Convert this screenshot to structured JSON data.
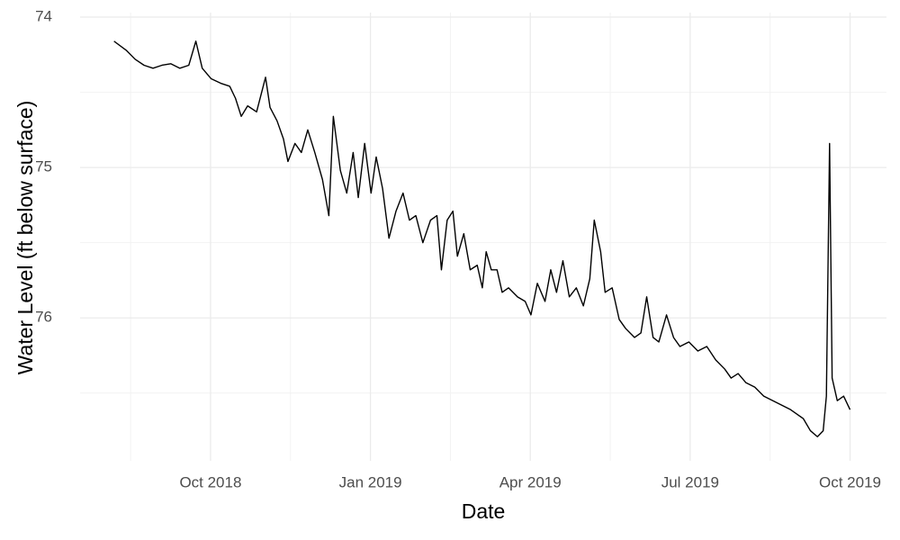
{
  "chart_data": {
    "type": "line",
    "x_label": "Date",
    "y_label": "Water Level (ft below surface)",
    "color": "#000000",
    "grid": true,
    "y_reversed": true,
    "xlim": [
      2018.546,
      2019.807
    ],
    "ylim": [
      73.97,
      76.95
    ],
    "xticks": [
      {
        "value": 2018.75,
        "label": "Oct 2018"
      },
      {
        "value": 2019.0,
        "label": "Jan 2019"
      },
      {
        "value": 2019.25,
        "label": "Apr 2019"
      },
      {
        "value": 2019.5,
        "label": "Jul 2019"
      },
      {
        "value": 2019.75,
        "label": "Oct 2019"
      }
    ],
    "yticks": [
      74,
      75,
      76
    ],
    "x": [
      2018.599,
      2018.618,
      2018.632,
      2018.646,
      2018.66,
      2018.674,
      2018.688,
      2018.702,
      2018.716,
      2018.727,
      2018.737,
      2018.751,
      2018.766,
      2018.78,
      2018.789,
      2018.798,
      2018.808,
      2018.822,
      2018.836,
      2018.843,
      2018.854,
      2018.864,
      2018.871,
      2018.882,
      2018.892,
      2018.902,
      2018.913,
      2018.925,
      2018.935,
      2018.942,
      2018.953,
      2018.963,
      2018.973,
      2018.981,
      2018.991,
      2019.001,
      2019.009,
      2019.019,
      2019.029,
      2019.04,
      2019.051,
      2019.061,
      2019.071,
      2019.082,
      2019.094,
      2019.104,
      2019.111,
      2019.12,
      2019.129,
      2019.136,
      2019.146,
      2019.156,
      2019.167,
      2019.175,
      2019.181,
      2019.189,
      2019.198,
      2019.206,
      2019.216,
      2019.23,
      2019.242,
      2019.251,
      2019.261,
      2019.273,
      2019.282,
      2019.291,
      2019.301,
      2019.311,
      2019.322,
      2019.333,
      2019.343,
      2019.35,
      2019.36,
      2019.367,
      2019.378,
      2019.389,
      2019.399,
      2019.413,
      2019.423,
      2019.432,
      2019.442,
      2019.451,
      2019.463,
      2019.474,
      2019.484,
      2019.498,
      2019.512,
      2019.526,
      2019.54,
      2019.554,
      2019.564,
      2019.575,
      2019.587,
      2019.601,
      2019.615,
      2019.629,
      2019.643,
      2019.657,
      2019.667,
      2019.677,
      2019.688,
      2019.699,
      2019.708,
      2019.713,
      2019.718,
      2019.722,
      2019.73,
      2019.74,
      2019.75
    ],
    "y": [
      74.16,
      74.22,
      74.28,
      74.32,
      74.34,
      74.32,
      74.31,
      74.34,
      74.32,
      74.16,
      74.34,
      74.41,
      74.44,
      74.46,
      74.54,
      74.66,
      74.59,
      74.63,
      74.4,
      74.6,
      74.69,
      74.81,
      74.96,
      74.84,
      74.9,
      74.75,
      74.9,
      75.08,
      75.32,
      74.66,
      75.02,
      75.17,
      74.9,
      75.2,
      74.84,
      75.17,
      74.93,
      75.14,
      75.47,
      75.29,
      75.17,
      75.35,
      75.32,
      75.5,
      75.35,
      75.32,
      75.68,
      75.35,
      75.29,
      75.59,
      75.44,
      75.68,
      75.65,
      75.8,
      75.56,
      75.68,
      75.68,
      75.83,
      75.8,
      75.86,
      75.89,
      75.98,
      75.77,
      75.89,
      75.68,
      75.83,
      75.62,
      75.86,
      75.8,
      75.92,
      75.74,
      75.35,
      75.56,
      75.83,
      75.8,
      76.01,
      76.07,
      76.13,
      76.1,
      75.86,
      76.13,
      76.16,
      75.98,
      76.13,
      76.19,
      76.16,
      76.22,
      76.19,
      76.28,
      76.34,
      76.4,
      76.37,
      76.43,
      76.46,
      76.52,
      76.55,
      76.58,
      76.61,
      76.64,
      76.67,
      76.75,
      76.79,
      76.75,
      76.52,
      74.84,
      76.4,
      76.55,
      76.52,
      76.61
    ]
  }
}
